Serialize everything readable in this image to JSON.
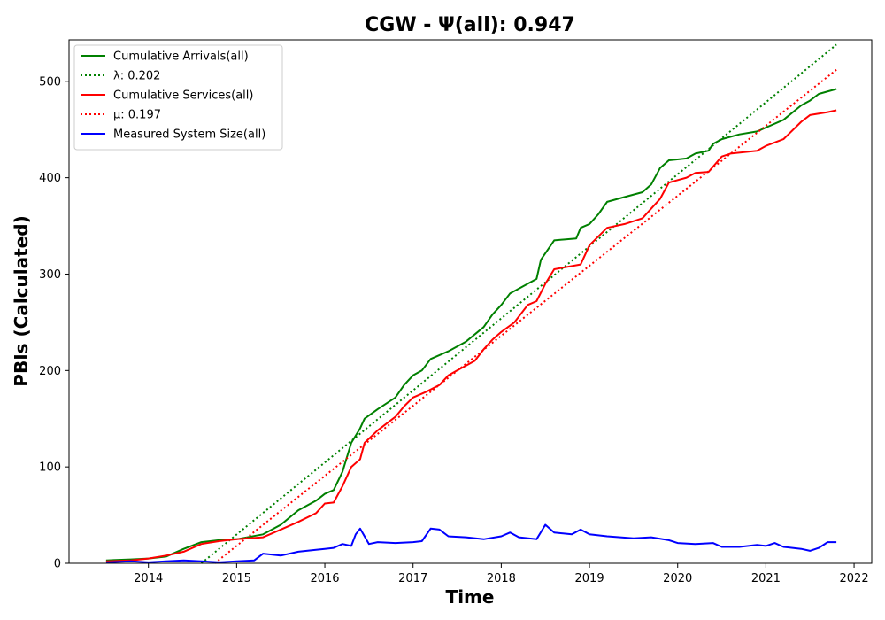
{
  "chart_data": {
    "type": "line",
    "title": "CGW -  Ψ(all): 0.947",
    "xlabel": "Time",
    "ylabel": "PBIs (Calculated)",
    "xlim": [
      2013.1,
      2022.2
    ],
    "ylim": [
      0,
      543
    ],
    "x_ticks": [
      2014,
      2015,
      2016,
      2017,
      2018,
      2019,
      2020,
      2021,
      2022
    ],
    "y_ticks": [
      0,
      100,
      200,
      300,
      400,
      500
    ],
    "grid": false,
    "legend_position": "top-left",
    "series": [
      {
        "name": "Cumulative Arrivals(all)",
        "color": "#008000",
        "style": "solid",
        "points": [
          [
            2013.52,
            3
          ],
          [
            2013.8,
            4
          ],
          [
            2014.0,
            5
          ],
          [
            2014.2,
            7
          ],
          [
            2014.4,
            15
          ],
          [
            2014.6,
            22
          ],
          [
            2014.8,
            24
          ],
          [
            2015.0,
            25
          ],
          [
            2015.3,
            30
          ],
          [
            2015.5,
            40
          ],
          [
            2015.7,
            55
          ],
          [
            2015.9,
            65
          ],
          [
            2016.0,
            72
          ],
          [
            2016.1,
            76
          ],
          [
            2016.2,
            95
          ],
          [
            2016.3,
            125
          ],
          [
            2016.4,
            140
          ],
          [
            2016.45,
            150
          ],
          [
            2016.6,
            160
          ],
          [
            2016.8,
            172
          ],
          [
            2016.9,
            185
          ],
          [
            2017.0,
            195
          ],
          [
            2017.1,
            200
          ],
          [
            2017.2,
            212
          ],
          [
            2017.4,
            220
          ],
          [
            2017.6,
            230
          ],
          [
            2017.8,
            245
          ],
          [
            2017.9,
            258
          ],
          [
            2018.0,
            268
          ],
          [
            2018.1,
            280
          ],
          [
            2018.3,
            290
          ],
          [
            2018.4,
            295
          ],
          [
            2018.45,
            315
          ],
          [
            2018.6,
            335
          ],
          [
            2018.85,
            337
          ],
          [
            2018.9,
            348
          ],
          [
            2019.0,
            352
          ],
          [
            2019.1,
            362
          ],
          [
            2019.2,
            375
          ],
          [
            2019.4,
            380
          ],
          [
            2019.6,
            385
          ],
          [
            2019.7,
            393
          ],
          [
            2019.8,
            410
          ],
          [
            2019.9,
            418
          ],
          [
            2020.1,
            420
          ],
          [
            2020.2,
            425
          ],
          [
            2020.35,
            428
          ],
          [
            2020.4,
            435
          ],
          [
            2020.5,
            440
          ],
          [
            2020.7,
            445
          ],
          [
            2020.9,
            448
          ],
          [
            2021.0,
            452
          ],
          [
            2021.2,
            460
          ],
          [
            2021.4,
            475
          ],
          [
            2021.5,
            480
          ],
          [
            2021.6,
            487
          ],
          [
            2021.8,
            492
          ]
        ]
      },
      {
        "name": "λ: 0.202",
        "color": "#008000",
        "style": "dotted",
        "points": [
          [
            2014.6,
            0
          ],
          [
            2021.8,
            538
          ]
        ]
      },
      {
        "name": "Cumulative Services(all)",
        "color": "#ff0000",
        "style": "solid",
        "points": [
          [
            2013.52,
            2
          ],
          [
            2013.8,
            3
          ],
          [
            2014.0,
            5
          ],
          [
            2014.2,
            8
          ],
          [
            2014.4,
            12
          ],
          [
            2014.6,
            20
          ],
          [
            2014.8,
            23
          ],
          [
            2015.0,
            25
          ],
          [
            2015.3,
            27
          ],
          [
            2015.5,
            35
          ],
          [
            2015.7,
            43
          ],
          [
            2015.9,
            52
          ],
          [
            2016.0,
            62
          ],
          [
            2016.1,
            63
          ],
          [
            2016.2,
            80
          ],
          [
            2016.3,
            100
          ],
          [
            2016.4,
            108
          ],
          [
            2016.45,
            125
          ],
          [
            2016.6,
            138
          ],
          [
            2016.8,
            152
          ],
          [
            2016.9,
            163
          ],
          [
            2017.0,
            172
          ],
          [
            2017.15,
            178
          ],
          [
            2017.3,
            185
          ],
          [
            2017.4,
            195
          ],
          [
            2017.5,
            200
          ],
          [
            2017.7,
            210
          ],
          [
            2017.8,
            222
          ],
          [
            2017.9,
            232
          ],
          [
            2018.0,
            240
          ],
          [
            2018.15,
            250
          ],
          [
            2018.3,
            268
          ],
          [
            2018.4,
            272
          ],
          [
            2018.5,
            290
          ],
          [
            2018.6,
            305
          ],
          [
            2018.9,
            310
          ],
          [
            2019.0,
            330
          ],
          [
            2019.2,
            348
          ],
          [
            2019.4,
            352
          ],
          [
            2019.6,
            358
          ],
          [
            2019.8,
            378
          ],
          [
            2019.9,
            395
          ],
          [
            2020.1,
            400
          ],
          [
            2020.2,
            405
          ],
          [
            2020.35,
            406
          ],
          [
            2020.5,
            422
          ],
          [
            2020.6,
            425
          ],
          [
            2020.9,
            428
          ],
          [
            2021.0,
            433
          ],
          [
            2021.2,
            440
          ],
          [
            2021.4,
            458
          ],
          [
            2021.5,
            465
          ],
          [
            2021.7,
            468
          ],
          [
            2021.8,
            470
          ]
        ]
      },
      {
        "name": "μ: 0.197",
        "color": "#ff0000",
        "style": "dotted",
        "points": [
          [
            2014.75,
            0
          ],
          [
            2021.8,
            512
          ]
        ]
      },
      {
        "name": "Measured System Size(all)",
        "color": "#0000ff",
        "style": "solid",
        "points": [
          [
            2013.52,
            1
          ],
          [
            2013.8,
            2
          ],
          [
            2014.0,
            1
          ],
          [
            2014.2,
            2
          ],
          [
            2014.4,
            3
          ],
          [
            2014.6,
            2
          ],
          [
            2014.8,
            1
          ],
          [
            2015.0,
            2
          ],
          [
            2015.2,
            3
          ],
          [
            2015.3,
            10
          ],
          [
            2015.5,
            8
          ],
          [
            2015.7,
            12
          ],
          [
            2015.9,
            14
          ],
          [
            2016.0,
            15
          ],
          [
            2016.1,
            16
          ],
          [
            2016.2,
            20
          ],
          [
            2016.3,
            18
          ],
          [
            2016.35,
            30
          ],
          [
            2016.4,
            36
          ],
          [
            2016.5,
            20
          ],
          [
            2016.6,
            22
          ],
          [
            2016.8,
            21
          ],
          [
            2017.0,
            22
          ],
          [
            2017.1,
            23
          ],
          [
            2017.2,
            36
          ],
          [
            2017.3,
            35
          ],
          [
            2017.4,
            28
          ],
          [
            2017.6,
            27
          ],
          [
            2017.8,
            25
          ],
          [
            2018.0,
            28
          ],
          [
            2018.1,
            32
          ],
          [
            2018.2,
            27
          ],
          [
            2018.4,
            25
          ],
          [
            2018.5,
            40
          ],
          [
            2018.6,
            32
          ],
          [
            2018.8,
            30
          ],
          [
            2018.9,
            35
          ],
          [
            2019.0,
            30
          ],
          [
            2019.2,
            28
          ],
          [
            2019.5,
            26
          ],
          [
            2019.7,
            27
          ],
          [
            2019.9,
            24
          ],
          [
            2020.0,
            21
          ],
          [
            2020.2,
            20
          ],
          [
            2020.4,
            21
          ],
          [
            2020.5,
            17
          ],
          [
            2020.7,
            17
          ],
          [
            2020.9,
            19
          ],
          [
            2021.0,
            18
          ],
          [
            2021.1,
            21
          ],
          [
            2021.2,
            17
          ],
          [
            2021.4,
            15
          ],
          [
            2021.5,
            13
          ],
          [
            2021.6,
            16
          ],
          [
            2021.7,
            22
          ],
          [
            2021.8,
            22
          ]
        ]
      }
    ]
  }
}
